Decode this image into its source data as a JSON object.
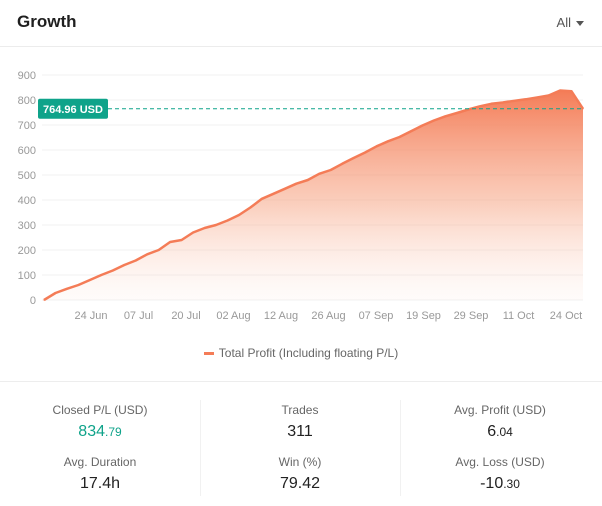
{
  "header": {
    "title": "Growth",
    "period_label": "All"
  },
  "chart_data": {
    "type": "area",
    "series": [
      {
        "name": "Total Profit (Including floating P/L)",
        "color": "#f47c57",
        "values": [
          0,
          28,
          45,
          60,
          80,
          100,
          118,
          140,
          158,
          183,
          200,
          232,
          240,
          270,
          288,
          300,
          318,
          340,
          370,
          405,
          425,
          445,
          465,
          480,
          505,
          520,
          545,
          568,
          590,
          615,
          635,
          652,
          675,
          698,
          718,
          735,
          748,
          762,
          775,
          785,
          790,
          797,
          803,
          810,
          818,
          838,
          835,
          764.96
        ]
      }
    ],
    "x_ticks": [
      "24 Jun",
      "07 Jul",
      "20 Jul",
      "02 Aug",
      "12 Aug",
      "26 Aug",
      "07 Sep",
      "19 Sep",
      "29 Sep",
      "11 Oct",
      "24 Oct"
    ],
    "y_ticks": [
      0,
      100,
      200,
      300,
      400,
      500,
      600,
      700,
      800,
      900
    ],
    "ylim": [
      0,
      900
    ],
    "grid": true,
    "legend": "bottom",
    "reference_line": {
      "value": 764.96,
      "label": "764.96 USD",
      "color": "#0fa38a"
    }
  },
  "legend": {
    "label": "Total Profit (Including floating P/L)"
  },
  "stats": {
    "closed_pl": {
      "label": "Closed P/L (USD)",
      "int": "834",
      "dec": ".79"
    },
    "trades": {
      "label": "Trades",
      "value": "311"
    },
    "avg_profit": {
      "label": "Avg. Profit (USD)",
      "int": "6",
      "dec": ".04"
    },
    "avg_duration": {
      "label": "Avg. Duration",
      "value": "17.4h"
    },
    "win": {
      "label": "Win (%)",
      "value": "79.42"
    },
    "avg_loss": {
      "label": "Avg. Loss (USD)",
      "int": "-10",
      "dec": ".30"
    }
  }
}
